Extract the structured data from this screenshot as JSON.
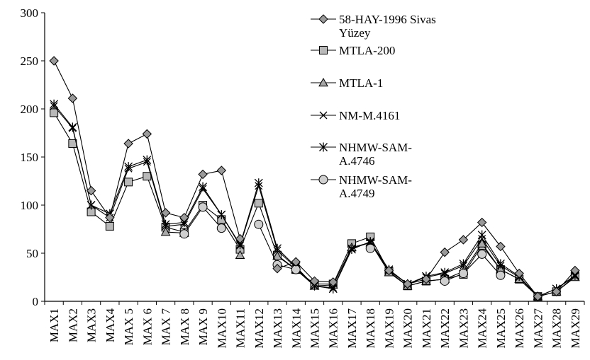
{
  "chart_data": {
    "type": "line",
    "title": "",
    "xlabel": "",
    "ylabel": "",
    "ylim": [
      0,
      300
    ],
    "yticks": [
      0,
      50,
      100,
      150,
      200,
      250,
      300
    ],
    "grid": false,
    "legend_position": "top-right",
    "categories": [
      "MAX1",
      "MAX2",
      "MAX3",
      "MAX4",
      "MAX 5",
      "MAX 6",
      "MAX 7",
      "MAX 8",
      "MAX 9",
      "MAX10",
      "MAX11",
      "MAX12",
      "MAX13",
      "MAX14",
      "MAX15",
      "MAX16",
      "MAX17",
      "MAX18",
      "MAX19",
      "MAX20",
      "MAX21",
      "MAX22",
      "MAX23",
      "MAX24",
      "MAX25",
      "MAX26",
      "MAX27",
      "MAX28",
      "MAX29"
    ],
    "series": [
      {
        "name": "58-HAY-1996 Sivas Yüzey",
        "legend_lines": [
          "58-HAY-1996 Sivas",
          "Yüzey"
        ],
        "marker": "diamond",
        "fill": "#9a9a9a",
        "values": [
          250,
          211,
          115,
          87,
          164,
          174,
          92,
          87,
          132,
          136,
          65,
          null,
          34,
          41,
          21,
          20,
          null,
          null,
          32,
          18,
          23,
          51,
          64,
          82,
          57,
          29,
          5,
          10,
          32
        ]
      },
      {
        "name": "MTLA-200",
        "legend_lines": [
          "MTLA-200"
        ],
        "marker": "square",
        "fill": "#b8b8b8",
        "values": [
          196,
          164,
          93,
          78,
          124,
          130,
          77,
          72,
          100,
          85,
          54,
          102,
          48,
          33,
          18,
          18,
          60,
          67,
          31,
          16,
          21,
          23,
          28,
          58,
          33,
          23,
          5,
          10,
          26
        ]
      },
      {
        "name": "MTLA-1",
        "legend_lines": [
          "MTLA-1"
        ],
        "marker": "triangle",
        "fill": "#a8a8a8",
        "values": [
          null,
          null,
          null,
          null,
          null,
          null,
          72,
          71,
          null,
          null,
          48,
          null,
          47,
          33,
          16,
          17,
          56,
          61,
          30,
          16,
          21,
          23,
          31,
          60,
          33,
          23,
          5,
          10,
          25
        ]
      },
      {
        "name": "NM-M.4161",
        "legend_lines": [
          "NM-M.4161"
        ],
        "marker": "x",
        "fill": "none",
        "values": [
          203,
          180,
          100,
          87,
          138,
          145,
          78,
          80,
          117,
          90,
          58,
          120,
          53,
          35,
          16,
          14,
          55,
          61,
          32,
          18,
          25,
          29,
          37,
          65,
          37,
          25,
          5,
          13,
          26
        ]
      },
      {
        "name": "NHMW-SAM-A.4746",
        "legend_lines": [
          "NHMW-SAM-",
          "A.4746"
        ],
        "marker": "star",
        "fill": "none",
        "values": [
          205,
          181,
          100,
          91,
          140,
          147,
          80,
          82,
          119,
          90,
          59,
          123,
          55,
          36,
          16,
          13,
          54,
          62,
          33,
          18,
          26,
          30,
          39,
          69,
          39,
          26,
          5,
          13,
          27
        ]
      },
      {
        "name": "NHMW-SAM-A.4749",
        "legend_lines": [
          "NHMW-SAM-",
          "A.4749"
        ],
        "marker": "circle",
        "fill": "#cfcfcf",
        "values": [
          null,
          null,
          null,
          null,
          null,
          null,
          null,
          70,
          98,
          76,
          null,
          80,
          38,
          33,
          null,
          null,
          null,
          55,
          null,
          null,
          null,
          21,
          29,
          49,
          27,
          null,
          null,
          null,
          null
        ]
      }
    ]
  }
}
